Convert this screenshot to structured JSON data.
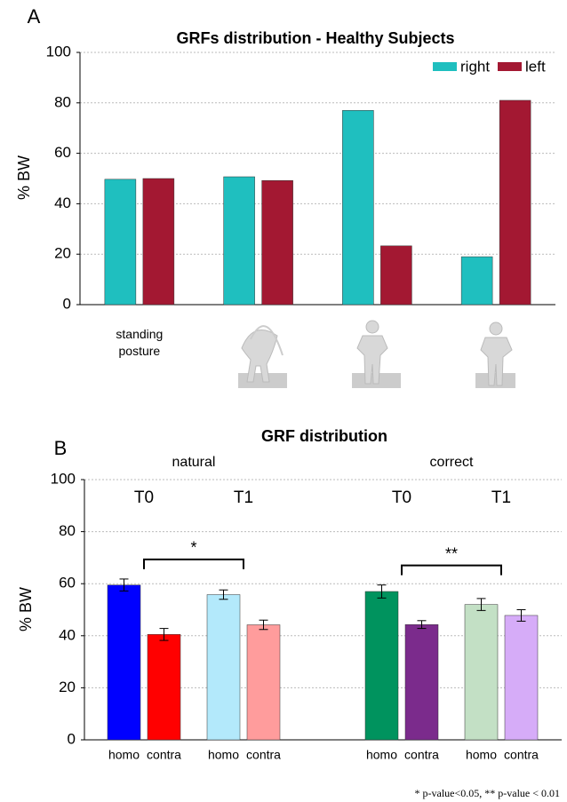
{
  "chart_data": [
    {
      "type": "bar",
      "panel": "A",
      "title": "GRFs distribution - Healthy Subjects",
      "y_label": "% BW",
      "categories": [
        "standing posture",
        null,
        null,
        null
      ],
      "series": [
        {
          "name": "right",
          "color": "#1fbfbf",
          "values": [
            49.7,
            50.7,
            77,
            19
          ]
        },
        {
          "name": "left",
          "color": "#a31832",
          "values": [
            50,
            49.2,
            23.3,
            81
          ]
        }
      ],
      "ylim": [
        0,
        100
      ],
      "yticks": [
        0,
        20,
        40,
        60,
        80,
        100
      ],
      "grid": true,
      "legend": "upper-right"
    },
    {
      "type": "errorbar",
      "panel": "B",
      "title": "GRF distribution",
      "y_label": "% BW",
      "groups": [
        {
          "name": "natural",
          "timepoints": [
            "T0",
            "T1"
          ],
          "significance": "*"
        },
        {
          "name": "correct",
          "timepoints": [
            "T0",
            "T1"
          ],
          "significance": "**"
        }
      ],
      "categories": [
        "homo",
        "contra",
        "homo",
        "contra",
        "homo",
        "contra",
        "homo",
        "contra"
      ],
      "values": [
        59.5,
        40.5,
        55.8,
        44.2,
        57,
        44.3,
        52,
        47.8
      ],
      "errors": [
        2.3,
        2.3,
        1.8,
        1.8,
        2.5,
        1.5,
        2.3,
        2.2
      ],
      "colors": [
        "#0000ff",
        "#ff0000",
        "#b3e9fb",
        "#ff9c9c",
        "#00935e",
        "#7b2b8c",
        "#c3e0c5",
        "#d6acf8"
      ],
      "ylim": [
        0,
        100
      ],
      "yticks": [
        0,
        20,
        40,
        60,
        80,
        100
      ],
      "grid": true
    }
  ],
  "footnote": "* p-value<0.05, ** p-value < 0.01"
}
